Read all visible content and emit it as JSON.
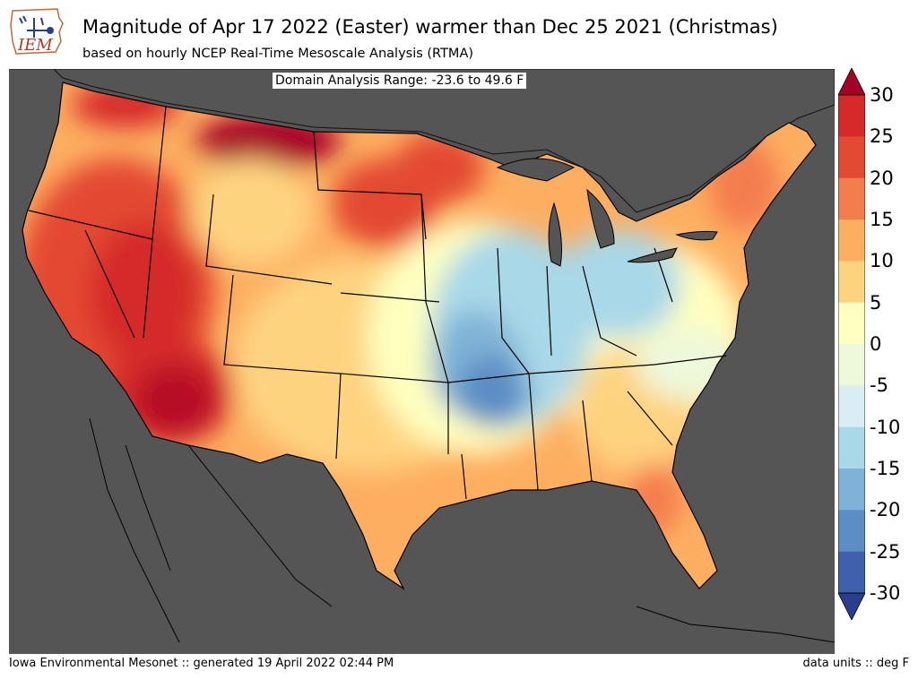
{
  "header": {
    "logo_text": "IEM",
    "title": "Magnitude of Apr 17 2022 (Easter) warmer than Dec 25 2021 (Christmas)",
    "subtitle": "based on hourly NCEP Real-Time Mesoscale Analysis (RTMA)"
  },
  "map": {
    "annotation": "Domain Analysis Range: -23.6 to 49.6 F",
    "ocean_color": "#555555",
    "region": "Continental United States"
  },
  "colorbar": {
    "ticks": [
      "30",
      "25",
      "20",
      "15",
      "10",
      "5",
      "0",
      "-5",
      "-10",
      "-15",
      "-20",
      "-25",
      "-30"
    ],
    "colors": [
      "#a50026",
      "#d52a2a",
      "#e34a33",
      "#f47d4d",
      "#fdae61",
      "#fed380",
      "#ffffbf",
      "#eef8da",
      "#d8eef4",
      "#a9d8e8",
      "#7fb2d6",
      "#5b8ec5",
      "#3e60ad"
    ]
  },
  "footer": {
    "left": "Iowa Environmental Mesonet :: generated 19 April 2022 02:44 PM",
    "right": "data units :: deg F"
  }
}
